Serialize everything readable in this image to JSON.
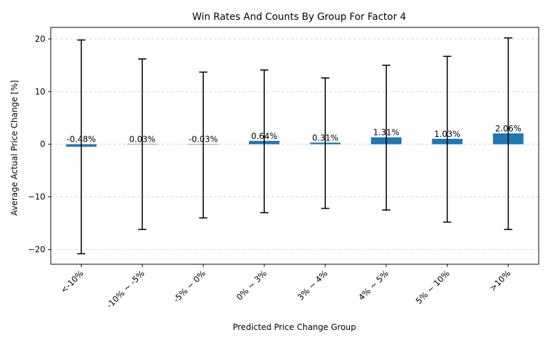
{
  "chart_data": {
    "type": "bar",
    "title": "Win Rates And Counts By Group For Factor 4",
    "xlabel": "Predicted Price Change Group",
    "ylabel": "Average Actual Price Change [%]",
    "categories": [
      "<-10%",
      "-10% ~ -5%",
      "-5% ~ 0%",
      "0% ~ 3%",
      "3% ~ 4%",
      "4% ~ 5%",
      "5% ~ 10%",
      ">10%"
    ],
    "values": [
      -0.48,
      0.03,
      -0.03,
      0.64,
      0.31,
      1.31,
      1.03,
      2.06
    ],
    "error_low": [
      -20.8,
      -16.2,
      -14.0,
      -13.0,
      -12.2,
      -12.5,
      -14.8,
      -16.2
    ],
    "error_high": [
      19.8,
      16.2,
      13.7,
      14.1,
      12.6,
      15.0,
      16.7,
      20.2
    ],
    "value_labels": [
      "-0.48%",
      "0.03%",
      "-0.03%",
      "0.64%",
      "0.31%",
      "1.31%",
      "1.03%",
      "2.06%"
    ],
    "ylim": [
      -22.8,
      22.2
    ],
    "yticks": [
      -20,
      -10,
      0,
      10,
      20
    ],
    "ytick_labels": [
      "−20",
      "−10",
      "0",
      "10",
      "20"
    ],
    "grid": "y",
    "bar_color": "#1f77b4",
    "errorbar_color": "#000000",
    "grid_color": "#cccccc"
  }
}
